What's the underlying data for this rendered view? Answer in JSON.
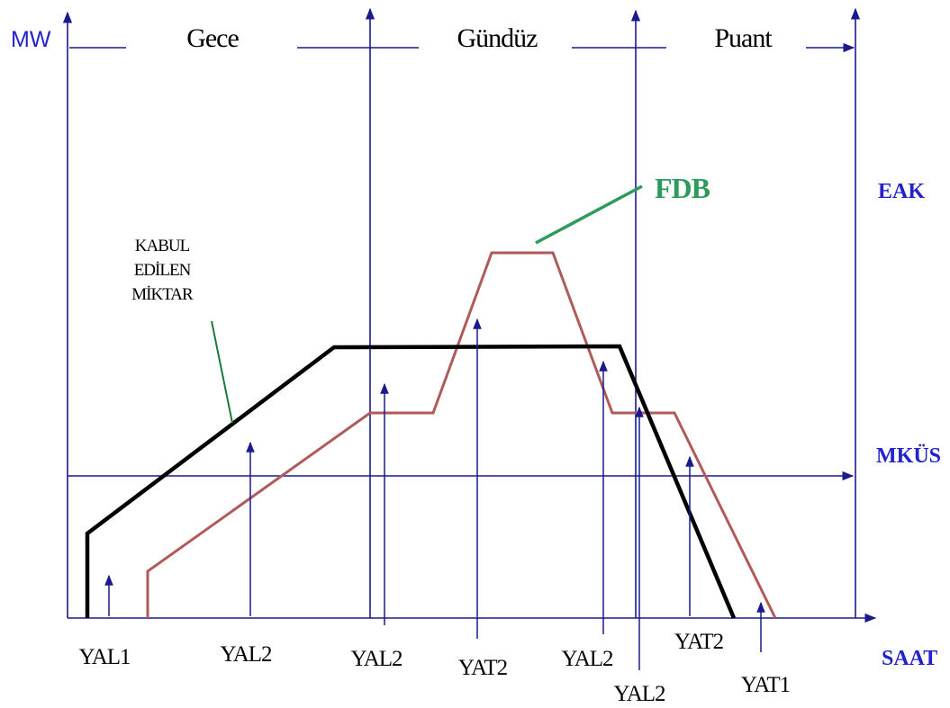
{
  "axes": {
    "y_label": "MW",
    "x_label": "SAAT",
    "right_labels": {
      "eak": "EAK",
      "mkus": "MKÜS"
    }
  },
  "periods": [
    "Gece",
    "Gündüz",
    "Puant"
  ],
  "curve_labels": {
    "fdb": "FDB",
    "accepted": [
      "KABUL",
      "EDİLEN",
      "MİKTAR"
    ]
  },
  "instructions": [
    "YAL1",
    "YAL2",
    "YAL2",
    "YAT2",
    "YAL2",
    "YAL2",
    "YAT2",
    "YAT1"
  ],
  "colors": {
    "axis": "#1a1a8c",
    "label_blue": "#2222cc",
    "accepted_curve": "#000000",
    "fdb_curve": "#b05a5a",
    "fdb_label": "#2e9a5c",
    "pointer": "#1c7a3a",
    "text": "#000000"
  }
}
